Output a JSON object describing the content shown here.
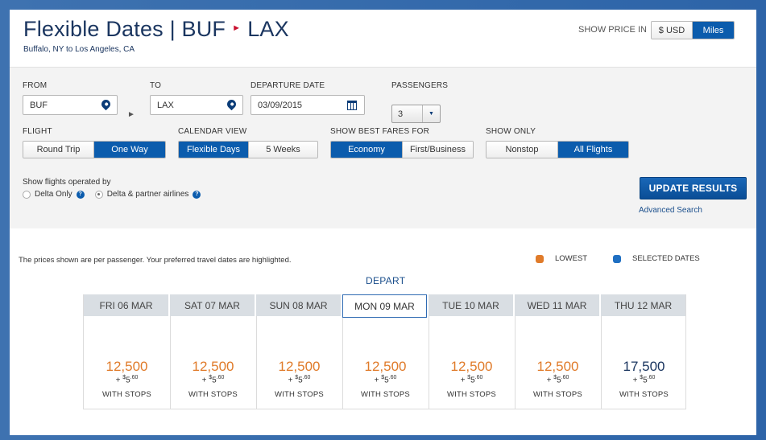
{
  "header": {
    "title_main": "Flexible Dates | BUF",
    "title_dest": "LAX",
    "subtitle": "Buffalo, NY to Los Angeles, CA",
    "show_price_label": "SHOW PRICE IN",
    "price_options": [
      "$ USD",
      "Miles"
    ],
    "price_selected": "Miles"
  },
  "form": {
    "from_label": "FROM",
    "from_value": "BUF",
    "to_label": "TO",
    "to_value": "LAX",
    "departure_label": "DEPARTURE DATE",
    "departure_value": "03/09/2015",
    "passengers_label": "PASSENGERS",
    "passengers_value": "3",
    "flight_label": "FLIGHT",
    "flight_options": [
      "Round Trip",
      "One Way"
    ],
    "calendar_label": "CALENDAR VIEW",
    "calendar_options": [
      "Flexible Days",
      "5 Weeks"
    ],
    "fares_label": "SHOW BEST FARES FOR",
    "fares_options": [
      "Economy",
      "First/Business"
    ],
    "only_label": "SHOW ONLY",
    "only_options": [
      "Nonstop",
      "All Flights"
    ],
    "operated_label": "Show flights operated by",
    "operated_options": [
      "Delta Only",
      "Delta & partner airlines"
    ],
    "help_glyph": "?",
    "update_label": "UPDATE RESULTS",
    "advanced_label": "Advanced Search"
  },
  "results": {
    "note": "The prices shown are per passenger. Your preferred travel dates are highlighted.",
    "legend_lowest": "LOWEST",
    "legend_selected": "SELECTED DATES",
    "lowest_color": "#e07b2a",
    "selected_color": "#1f6fc2",
    "depart_label": "DEPART",
    "fee_plus": "+ ",
    "fee_dollar": "$",
    "fee_main": "5",
    "fee_cents": ".60",
    "days": [
      {
        "label": "FRI 06 MAR",
        "price": "12,500",
        "stops": "WITH STOPS"
      },
      {
        "label": "SAT 07 MAR",
        "price": "12,500",
        "stops": "WITH STOPS"
      },
      {
        "label": "SUN 08 MAR",
        "price": "12,500",
        "stops": "WITH STOPS"
      },
      {
        "label": "MON 09 MAR",
        "price": "12,500",
        "stops": "WITH STOPS"
      },
      {
        "label": "TUE 10 MAR",
        "price": "12,500",
        "stops": "WITH STOPS"
      },
      {
        "label": "WED 11 MAR",
        "price": "12,500",
        "stops": "WITH STOPS"
      },
      {
        "label": "THU 12 MAR",
        "price": "17,500",
        "stops": "WITH STOPS"
      }
    ]
  }
}
